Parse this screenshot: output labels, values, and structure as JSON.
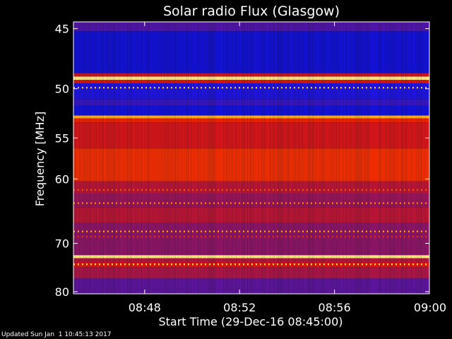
{
  "chart_data": {
    "type": "heatmap",
    "title": "Solar radio Flux (Glasgow)",
    "ylabel": "Frequency [MHz]",
    "xlabel": "Start Time (29-Dec-16 08:45:00)",
    "x_ticks": [
      "08:48",
      "08:52",
      "08:56",
      "09:00"
    ],
    "x_tick_minutes": [
      3,
      7,
      11,
      15
    ],
    "xlim_minutes_after_start": [
      0,
      15
    ],
    "y_ticks": [
      45,
      50,
      55,
      60,
      70,
      80
    ],
    "ylim_mhz": [
      44.5,
      80.5
    ],
    "y_scale": "reciprocal",
    "footer": "Updated Sun Jan  1 10:45:13 2017",
    "bands": [
      {
        "from": 44.5,
        "to": 45.2,
        "level": 0.3
      },
      {
        "from": 45.2,
        "to": 48.6,
        "level": 0.15
      },
      {
        "from": 48.6,
        "to": 48.9,
        "level": 0.55
      },
      {
        "from": 48.9,
        "to": 49.2,
        "level": 0.97
      },
      {
        "from": 49.2,
        "to": 49.5,
        "level": 0.6
      },
      {
        "from": 49.5,
        "to": 51.0,
        "level": 0.2
      },
      {
        "from": 51.0,
        "to": 51.6,
        "level": 0.25
      },
      {
        "from": 51.6,
        "to": 52.6,
        "level": 0.16
      },
      {
        "from": 52.6,
        "to": 52.9,
        "level": 0.9
      },
      {
        "from": 52.9,
        "to": 53.3,
        "level": 0.68
      },
      {
        "from": 53.3,
        "to": 56.2,
        "level": 0.58
      },
      {
        "from": 56.2,
        "to": 60.3,
        "level": 0.7
      },
      {
        "from": 60.3,
        "to": 62.0,
        "level": 0.5
      },
      {
        "from": 62.0,
        "to": 64.0,
        "level": 0.42
      },
      {
        "from": 64.0,
        "to": 66.5,
        "level": 0.5
      },
      {
        "from": 66.5,
        "to": 72.2,
        "level": 0.4
      },
      {
        "from": 72.2,
        "to": 72.8,
        "level": 0.97
      },
      {
        "from": 72.8,
        "to": 73.6,
        "level": 0.48
      },
      {
        "from": 73.6,
        "to": 74.6,
        "level": 0.62
      },
      {
        "from": 74.6,
        "to": 77.0,
        "level": 0.45
      },
      {
        "from": 77.0,
        "to": 80.5,
        "level": 0.32
      }
    ],
    "dotted_lines": [
      {
        "mhz": 49.9,
        "level": 0.92
      },
      {
        "mhz": 61.5,
        "level": 0.78
      },
      {
        "mhz": 63.4,
        "level": 0.85
      },
      {
        "mhz": 67.9,
        "level": 0.88
      },
      {
        "mhz": 68.8,
        "level": 0.7
      },
      {
        "mhz": 74.0,
        "level": 0.95
      }
    ]
  }
}
